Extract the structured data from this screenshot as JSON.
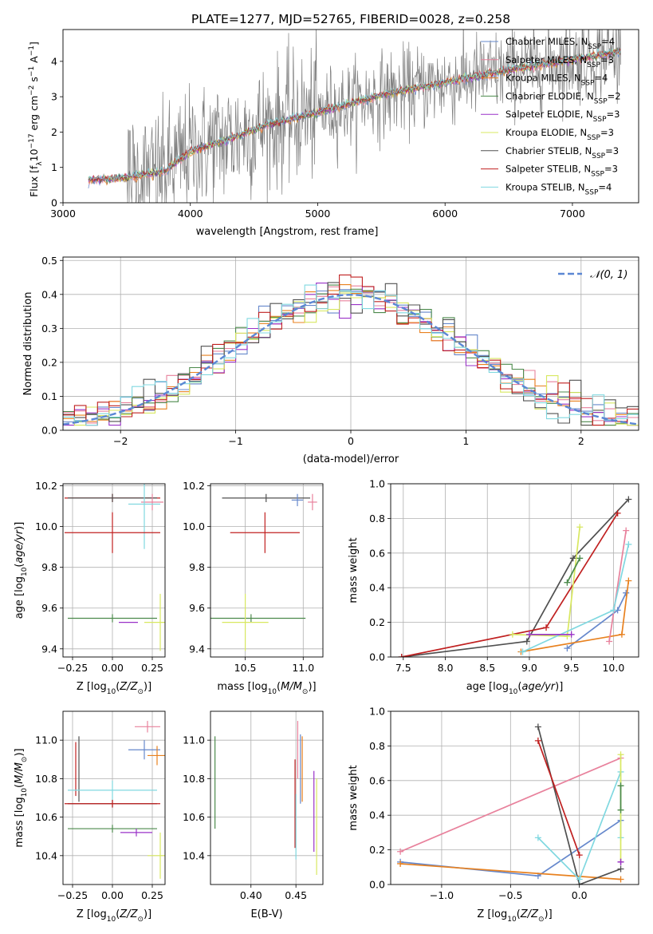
{
  "figure_title": "PLATE=1277, MJD=52765, FIBERID=0028, z=0.258",
  "colors": {
    "grid": "#b0b0b0",
    "data": "#808080",
    "normal": "#5b87d4"
  },
  "chart_data": [
    {
      "id": "spectrum",
      "type": "line",
      "xlabel": "wavelength [Angstrom, rest frame]",
      "ylabel": "Flux [f_λ 10^-17 erg cm^-2 s^-1 A^-1]",
      "xlim": [
        3000,
        7520
      ],
      "ylim": [
        0,
        4.9
      ],
      "xticks": [
        3000,
        4000,
        5000,
        6000,
        7000
      ],
      "yticks": [
        0,
        1,
        2,
        3,
        4
      ],
      "grid": false,
      "legend_position": "top-right",
      "series": [
        {
          "name": "Chabrier MILES, N_SSP=4",
          "color": "#6688cc"
        },
        {
          "name": "Salpeter MILES, N_SSP=3",
          "color": "#e8819c"
        },
        {
          "name": "Kroupa MILES, N_SSP=4",
          "color": "#e8811f"
        },
        {
          "name": "Chabrier ELODIE, N_SSP=2",
          "color": "#4c8a4c"
        },
        {
          "name": "Salpeter ELODIE, N_SSP=3",
          "color": "#9a32c8"
        },
        {
          "name": "Kroupa ELODIE, N_SSP=3",
          "color": "#d8e860"
        },
        {
          "name": "Chabrier STELIB, N_SSP=3",
          "color": "#505050"
        },
        {
          "name": "Salpeter STELIB, N_SSP=3",
          "color": "#c02020"
        },
        {
          "name": "Kroupa STELIB, N_SSP=4",
          "color": "#80d8e0"
        }
      ],
      "data_trend": {
        "x": [
          3200,
          3500,
          3800,
          4000,
          4300,
          4600,
          5000,
          5500,
          6000,
          6500,
          7000,
          7350
        ],
        "y": [
          0.65,
          0.7,
          0.9,
          1.45,
          1.8,
          2.2,
          2.55,
          3.05,
          3.4,
          3.75,
          4.05,
          4.25
        ]
      }
    },
    {
      "id": "residuals",
      "type": "line",
      "xlabel": "(data-model)/error",
      "ylabel": "Normed distribution",
      "xlim": [
        -2.5,
        2.5
      ],
      "ylim": [
        0,
        0.51
      ],
      "xticks": [
        -2,
        -1,
        0,
        1,
        2
      ],
      "xtick_labels": [
        "−2",
        "−1",
        "0",
        "1",
        "2"
      ],
      "yticks": [
        0.0,
        0.1,
        0.2,
        0.3,
        0.4,
        0.5
      ],
      "ytick_labels": [
        "0.0",
        "0.1",
        "0.2",
        "0.3",
        "0.4",
        "0.5"
      ],
      "grid": true,
      "legend": "𝒩(0, 1)",
      "legend_position": "top-right"
    },
    {
      "id": "age_vs_Z",
      "type": "scatter",
      "xlabel": "Z [log10(Z/Z⊙)]",
      "ylabel": "age [log10(age/yr)]",
      "xlim": [
        -0.31,
        0.33
      ],
      "ylim": [
        9.36,
        10.21
      ],
      "xticks": [
        -0.25,
        0,
        0.25
      ],
      "xtick_labels": [
        "−0.25",
        "0.00",
        "0.25"
      ],
      "yticks": [
        9.4,
        9.6,
        9.8,
        10.0,
        10.2
      ],
      "ytick_labels": [
        "9.4",
        "9.6",
        "9.8",
        "10.0",
        "10.2"
      ],
      "grid": true,
      "points": [
        {
          "x": 0.0,
          "y": 10.14,
          "xerr": 0.3,
          "yerr": 0.02,
          "c": "#c02020"
        },
        {
          "x": 0.0,
          "y": 10.14,
          "xerr": 0.28,
          "yerr": 0.02,
          "c": "#505050"
        },
        {
          "x": 0.25,
          "y": 10.12,
          "xerr": 0.07,
          "yerr": 0.04,
          "c": "#e8819c"
        },
        {
          "x": 0.2,
          "y": 10.11,
          "xerr": 0.1,
          "yerr": 0.22,
          "c": "#80d8e0"
        },
        {
          "x": 0.0,
          "y": 9.97,
          "xerr": 0.3,
          "yerr": 0.1,
          "c": "#c02020"
        },
        {
          "x": 0.3,
          "y": 9.53,
          "xerr": 0.1,
          "yerr": 0.14,
          "c": "#d8e860"
        },
        {
          "x": 0.0,
          "y": 9.55,
          "xerr": 0.28,
          "yerr": 0.02,
          "c": "#4c8a4c"
        },
        {
          "x": 0.1,
          "y": 9.53,
          "xerr": 0.06,
          "yerr": 0.0,
          "c": "#9a32c8"
        }
      ]
    },
    {
      "id": "age_vs_mass",
      "type": "scatter",
      "xlabel": "mass [log10(M/M⊙)]",
      "ylabel": "",
      "xlim": [
        10.2,
        11.17
      ],
      "ylim": [
        9.36,
        10.21
      ],
      "xticks": [
        10.5,
        11.0
      ],
      "xtick_labels": [
        "10.5",
        "11.0"
      ],
      "yticks": [
        9.4,
        9.6,
        9.8,
        10.0,
        10.2
      ],
      "ytick_labels": [
        "9.4",
        "9.6",
        "9.8",
        "10.0",
        "10.2"
      ],
      "grid": true,
      "points": [
        {
          "x": 10.68,
          "y": 10.14,
          "xerr": 0.38,
          "yerr": 0.02,
          "c": "#505050"
        },
        {
          "x": 10.67,
          "y": 9.97,
          "xerr": 0.3,
          "yerr": 0.1,
          "c": "#c02020"
        },
        {
          "x": 10.55,
          "y": 9.55,
          "xerr": 0.47,
          "yerr": 0.02,
          "c": "#4c8a4c"
        },
        {
          "x": 10.5,
          "y": 9.53,
          "xerr": 0.2,
          "yerr": 0.14,
          "c": "#d8e860"
        },
        {
          "x": 11.08,
          "y": 10.12,
          "xerr": 0.04,
          "yerr": 0.04,
          "c": "#e8819c"
        },
        {
          "x": 10.95,
          "y": 10.13,
          "xerr": 0.05,
          "yerr": 0.03,
          "c": "#6688cc"
        }
      ]
    },
    {
      "id": "mw_vs_age",
      "type": "line",
      "xlabel": "age [log10(age/yr)]",
      "ylabel": "mass weight",
      "xlim": [
        7.35,
        10.3
      ],
      "ylim": [
        0,
        1.0
      ],
      "xticks": [
        7.5,
        8.0,
        8.5,
        9.0,
        9.5,
        10.0
      ],
      "xtick_labels": [
        "7.5",
        "8.0",
        "8.5",
        "9.0",
        "9.5",
        "10.0"
      ],
      "yticks": [
        0,
        0.2,
        0.4,
        0.6,
        0.8,
        1.0
      ],
      "ytick_labels": [
        "0.0",
        "0.2",
        "0.4",
        "0.6",
        "0.8",
        "1.0"
      ],
      "grid": true,
      "series": [
        {
          "c": "#505050",
          "x": [
            7.48,
            8.97,
            9.52,
            10.18
          ],
          "y": [
            0.0,
            0.09,
            0.57,
            0.91
          ]
        },
        {
          "c": "#c02020",
          "x": [
            7.48,
            9.2,
            10.05
          ],
          "y": [
            0.0,
            0.17,
            0.83
          ]
        },
        {
          "c": "#d8e860",
          "x": [
            8.8,
            9.45,
            9.6
          ],
          "y": [
            0.13,
            0.12,
            0.75
          ]
        },
        {
          "c": "#4c8a4c",
          "x": [
            9.45,
            9.6
          ],
          "y": [
            0.43,
            0.57
          ]
        },
        {
          "c": "#6688cc",
          "x": [
            9.45,
            10.05,
            10.15
          ],
          "y": [
            0.05,
            0.27,
            0.37
          ]
        },
        {
          "c": "#e8811f",
          "x": [
            8.9,
            10.1,
            10.18
          ],
          "y": [
            0.03,
            0.13,
            0.44
          ]
        },
        {
          "c": "#e8819c",
          "x": [
            9.95,
            10.15
          ],
          "y": [
            0.09,
            0.73
          ]
        },
        {
          "c": "#80d8e0",
          "x": [
            8.92,
            10.0,
            10.18
          ],
          "y": [
            0.03,
            0.27,
            0.65
          ]
        },
        {
          "c": "#9a32c8",
          "x": [
            9.0,
            9.5
          ],
          "y": [
            0.13,
            0.13
          ]
        }
      ]
    },
    {
      "id": "mass_vs_Z",
      "type": "scatter",
      "xlabel": "Z [log10(Z/Z⊙)]",
      "ylabel": "mass [log10(M/M⊙)]",
      "xlim": [
        -0.31,
        0.33
      ],
      "ylim": [
        10.25,
        11.15
      ],
      "xticks": [
        -0.25,
        0,
        0.25
      ],
      "xtick_labels": [
        "−0.25",
        "0.00",
        "0.25"
      ],
      "yticks": [
        10.4,
        10.6,
        10.8,
        11.0
      ],
      "ytick_labels": [
        "10.4",
        "10.6",
        "10.8",
        "11.0"
      ],
      "grid": true,
      "points": [
        {
          "x": 0.0,
          "y": 10.67,
          "xerr": 0.28,
          "yerr": 0.02,
          "c": "#505050"
        },
        {
          "x": 0.0,
          "y": 10.67,
          "xerr": 0.3,
          "yerr": 0.02,
          "c": "#c02020"
        },
        {
          "x": -0.21,
          "y": 10.85,
          "xerr": 0.0,
          "yerr": 0.17,
          "c": "#505050"
        },
        {
          "x": -0.23,
          "y": 10.85,
          "xerr": 0.0,
          "yerr": 0.14,
          "c": "#c02020"
        },
        {
          "x": 0.22,
          "y": 11.07,
          "xerr": 0.08,
          "yerr": 0.03,
          "c": "#e8819c"
        },
        {
          "x": 0.2,
          "y": 10.95,
          "xerr": 0.1,
          "yerr": 0.05,
          "c": "#6688cc"
        },
        {
          "x": 0.28,
          "y": 10.92,
          "xerr": 0.06,
          "yerr": 0.05,
          "c": "#e8811f"
        },
        {
          "x": 0.0,
          "y": 10.74,
          "xerr": 0.28,
          "yerr": 0.05,
          "c": "#80d8e0"
        },
        {
          "x": 0.0,
          "y": 10.54,
          "xerr": 0.28,
          "yerr": 0.02,
          "c": "#4c8a4c"
        },
        {
          "x": 0.15,
          "y": 10.52,
          "xerr": 0.1,
          "yerr": 0.02,
          "c": "#9a32c8"
        },
        {
          "x": 0.3,
          "y": 10.4,
          "xerr": 0.08,
          "yerr": 0.12,
          "c": "#d8e860"
        }
      ]
    },
    {
      "id": "mass_vs_ebv",
      "type": "scatter",
      "xlabel": "E(B-V)",
      "ylabel": "",
      "xlim": [
        0.355,
        0.48
      ],
      "ylim": [
        10.25,
        11.15
      ],
      "xticks": [
        0.4,
        0.45
      ],
      "xtick_labels": [
        "0.40",
        "0.45"
      ],
      "yticks": [
        10.4,
        10.6,
        10.8,
        11.0
      ],
      "ytick_labels": [
        "10.4",
        "10.6",
        "10.8",
        "11.0"
      ],
      "grid": true,
      "points": [
        {
          "x": 0.36,
          "y": 10.78,
          "xerr": 0,
          "yerr": 0.24,
          "c": "#4c8a4c"
        },
        {
          "x": 0.449,
          "y": 10.67,
          "xerr": 0,
          "yerr": 0.23,
          "c": "#c02020"
        },
        {
          "x": 0.45,
          "y": 10.55,
          "xerr": 0,
          "yerr": 0.17,
          "c": "#80d8e0"
        },
        {
          "x": 0.452,
          "y": 10.95,
          "xerr": 0,
          "yerr": 0.15,
          "c": "#e8819c"
        },
        {
          "x": 0.455,
          "y": 10.85,
          "xerr": 0,
          "yerr": 0.18,
          "c": "#6688cc"
        },
        {
          "x": 0.457,
          "y": 10.85,
          "xerr": 0,
          "yerr": 0.17,
          "c": "#e8811f"
        },
        {
          "x": 0.47,
          "y": 10.63,
          "xerr": 0,
          "yerr": 0.21,
          "c": "#9a32c8"
        },
        {
          "x": 0.473,
          "y": 10.55,
          "xerr": 0,
          "yerr": 0.25,
          "c": "#d8e860"
        }
      ]
    },
    {
      "id": "mw_vs_Z",
      "type": "line",
      "xlabel": "Z [log10(Z/Z⊙)]",
      "ylabel": "mass weight",
      "xlim": [
        -1.37,
        0.43
      ],
      "ylim": [
        0,
        1.0
      ],
      "xticks": [
        -1.0,
        -0.5,
        0.0
      ],
      "xtick_labels": [
        "−1.0",
        "−0.5",
        "0.0"
      ],
      "yticks": [
        0,
        0.2,
        0.4,
        0.6,
        0.8,
        1.0
      ],
      "ytick_labels": [
        "0.0",
        "0.2",
        "0.4",
        "0.6",
        "0.8",
        "1.0"
      ],
      "grid": true,
      "series": [
        {
          "c": "#e8819c",
          "x": [
            -1.3,
            0.3
          ],
          "y": [
            0.19,
            0.73
          ]
        },
        {
          "c": "#6688cc",
          "x": [
            -1.3,
            -0.3,
            0.3
          ],
          "y": [
            0.13,
            0.05,
            0.37
          ]
        },
        {
          "c": "#e8811f",
          "x": [
            -1.3,
            0.3
          ],
          "y": [
            0.12,
            0.03
          ]
        },
        {
          "c": "#505050",
          "x": [
            -0.3,
            0.0,
            0.3
          ],
          "y": [
            0.91,
            0.0,
            0.09
          ]
        },
        {
          "c": "#c02020",
          "x": [
            -0.3,
            0.0
          ],
          "y": [
            0.83,
            0.17
          ]
        },
        {
          "c": "#80d8e0",
          "x": [
            -0.3,
            0.0,
            0.3,
            0.3
          ],
          "y": [
            0.27,
            0.03,
            0.65,
            0.27
          ]
        },
        {
          "c": "#d8e860",
          "x": [
            0.3,
            0.3
          ],
          "y": [
            0.13,
            0.75
          ]
        },
        {
          "c": "#4c8a4c",
          "x": [
            0.3,
            0.3
          ],
          "y": [
            0.43,
            0.57
          ]
        },
        {
          "c": "#9a32c8",
          "x": [
            0.3,
            0.3
          ],
          "y": [
            0.13,
            0.13
          ]
        }
      ]
    }
  ]
}
